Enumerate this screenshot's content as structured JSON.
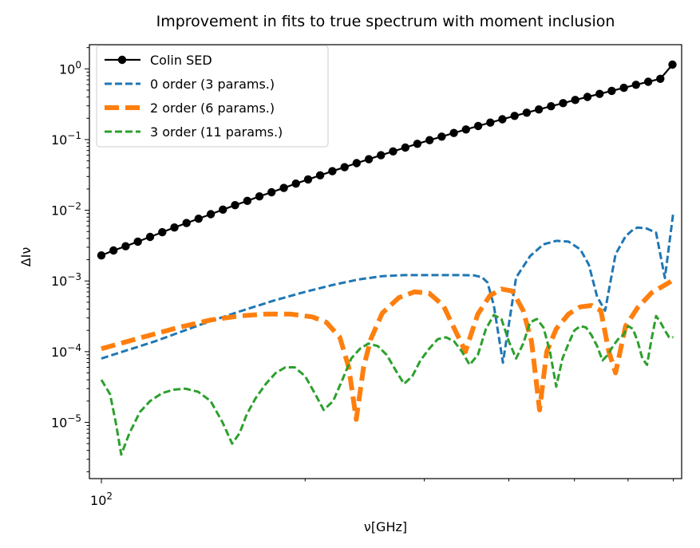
{
  "chart_data": {
    "type": "line",
    "title": "Improvement in fits to true spectrum with moment inclusion",
    "xlabel": "ν[GHz]",
    "ylabel": "ΔIν",
    "x_scale": "log",
    "y_scale": "log",
    "xlim": [
      96,
      720
    ],
    "ylim": [
      1.6e-06,
      2.2
    ],
    "x_tick_labels": [
      {
        "value": 100,
        "base": "10",
        "exp": "2"
      }
    ],
    "y_tick_labels": [
      {
        "value": 1e-05,
        "base": "10",
        "exp": "−5"
      },
      {
        "value": 0.0001,
        "base": "10",
        "exp": "−4"
      },
      {
        "value": 0.001,
        "base": "10",
        "exp": "−3"
      },
      {
        "value": 0.01,
        "base": "10",
        "exp": "−2"
      },
      {
        "value": 0.1,
        "base": "10",
        "exp": "−1"
      },
      {
        "value": 1,
        "base": "10",
        "exp": "0"
      }
    ],
    "grid": false,
    "legend_position": "top-left",
    "series": [
      {
        "name": "Colin SED",
        "color": "#000000",
        "style": "solid-marker",
        "x": [
          100,
          104.2,
          108.6,
          113.2,
          118.0,
          123.0,
          128.2,
          133.6,
          139.2,
          145.1,
          151.2,
          157.6,
          164.3,
          171.2,
          178.4,
          186.0,
          193.8,
          202.0,
          210.5,
          219.4,
          228.7,
          238.3,
          248.4,
          258.9,
          269.8,
          281.2,
          293.0,
          305.4,
          318.3,
          331.7,
          345.7,
          360.3,
          375.5,
          391.3,
          407.8,
          425.0,
          443.0,
          461.7,
          481.1,
          501.4,
          522.6,
          544.6,
          567.6,
          591.5,
          616.5,
          642.5,
          669.6,
          697.9
        ],
        "y": [
          0.0023,
          0.0027,
          0.0031,
          0.0036,
          0.0042,
          0.0049,
          0.0057,
          0.0066,
          0.0076,
          0.0088,
          0.0102,
          0.0118,
          0.0136,
          0.0157,
          0.018,
          0.0207,
          0.0238,
          0.0273,
          0.0312,
          0.0357,
          0.0407,
          0.0464,
          0.0528,
          0.06,
          0.068,
          0.077,
          0.087,
          0.098,
          0.11,
          0.124,
          0.139,
          0.156,
          0.174,
          0.194,
          0.216,
          0.24,
          0.267,
          0.296,
          0.328,
          0.363,
          0.401,
          0.443,
          0.489,
          0.54,
          0.596,
          0.657,
          0.723,
          1.15
        ]
      },
      {
        "name": "0 order (3 params.)",
        "color": "#1f77b4",
        "style": "dashed",
        "x": [
          100,
          120,
          140,
          160,
          180,
          200,
          220,
          240,
          260,
          280,
          300,
          320,
          340,
          355,
          365,
          372,
          380,
          392,
          410,
          430,
          450,
          470,
          490,
          510,
          525,
          540,
          555,
          575,
          595,
          610,
          620,
          640,
          660,
          680,
          700
        ],
        "y": [
          8e-05,
          0.00014,
          0.00024,
          0.00037,
          0.00053,
          0.0007,
          0.00088,
          0.00105,
          0.00117,
          0.00121,
          0.00121,
          0.00121,
          0.00121,
          0.0012,
          0.00113,
          0.00095,
          0.00045,
          7e-05,
          0.00112,
          0.00225,
          0.0033,
          0.0037,
          0.0036,
          0.0028,
          0.0017,
          0.0006,
          0.00038,
          0.00238,
          0.0043,
          0.0053,
          0.0057,
          0.0055,
          0.0048,
          0.0011,
          0.0094
        ]
      },
      {
        "name": "2 order (6 params.)",
        "color": "#ff7f0e",
        "style": "thick-dashed",
        "x": [
          100,
          115,
          130,
          145,
          160,
          175,
          190,
          205,
          215,
          225,
          232,
          238,
          244,
          250,
          260,
          275,
          290,
          305,
          320,
          335,
          345,
          352,
          360,
          375,
          390,
          405,
          420,
          432,
          444,
          455,
          470,
          490,
          510,
          530,
          547,
          562,
          575,
          595,
          620,
          650,
          690,
          700
        ],
        "y": [
          0.00011,
          0.00016,
          0.00022,
          0.00028,
          0.00032,
          0.00034,
          0.00034,
          0.00031,
          0.00026,
          0.00016,
          6e-05,
          1.1e-05,
          6e-05,
          0.00015,
          0.00035,
          0.00058,
          0.0007,
          0.00067,
          0.00045,
          0.00018,
          0.0001,
          0.00018,
          0.00034,
          0.00062,
          0.00077,
          0.00072,
          0.00038,
          0.00014,
          1.5e-05,
          0.0001,
          0.00021,
          0.00034,
          0.00043,
          0.00045,
          0.00038,
          0.0001,
          5e-05,
          0.00023,
          0.00042,
          0.00068,
          0.00095,
          0.00105
        ]
      },
      {
        "name": "3 order (11 params.)",
        "color": "#2ca02c",
        "style": "dashed",
        "x": [
          100,
          103,
          105,
          107,
          110,
          114,
          118,
          123,
          128,
          133,
          139,
          145,
          151,
          156,
          160,
          164,
          169,
          175,
          181,
          187,
          193,
          200,
          207,
          213,
          220,
          227,
          234,
          241,
          248,
          256,
          264,
          272,
          280,
          288,
          296,
          305,
          314,
          323,
          332,
          341,
          350,
          360,
          370,
          380,
          390,
          400,
          410,
          420,
          430,
          440,
          450,
          460,
          470,
          480,
          490,
          500,
          510,
          520,
          530,
          540,
          550,
          560,
          570,
          580,
          590,
          600,
          610,
          620,
          630,
          640,
          650,
          660,
          670,
          680,
          690,
          700
        ],
        "y": [
          4e-05,
          2.5e-05,
          1e-05,
          3.5e-06,
          7e-06,
          1.4e-05,
          2e-05,
          2.6e-05,
          2.9e-05,
          3e-05,
          2.7e-05,
          2e-05,
          1e-05,
          5e-06,
          7e-06,
          1.3e-05,
          2.2e-05,
          3.5e-05,
          5e-05,
          6e-05,
          6e-05,
          4.5e-05,
          2.5e-05,
          1.5e-05,
          2e-05,
          4e-05,
          8e-05,
          0.00011,
          0.00013,
          0.00012,
          9e-05,
          5.5e-05,
          3.5e-05,
          4.5e-05,
          7.5e-05,
          0.00011,
          0.00015,
          0.00016,
          0.00014,
          0.0001,
          6.5e-05,
          9e-05,
          0.00021,
          0.00033,
          0.00029,
          0.00014,
          8e-05,
          0.00013,
          0.00026,
          0.00029,
          0.00022,
          0.0001,
          3.2e-05,
          8e-05,
          0.00013,
          0.0002,
          0.00023,
          0.00022,
          0.00017,
          0.00012,
          7.5e-05,
          9e-05,
          0.00012,
          0.00015,
          0.00017,
          0.00023,
          0.00021,
          0.00014,
          8e-05,
          6.5e-05,
          0.00015,
          0.00032,
          0.00026,
          0.0002,
          0.00016,
          0.00016
        ]
      }
    ]
  }
}
